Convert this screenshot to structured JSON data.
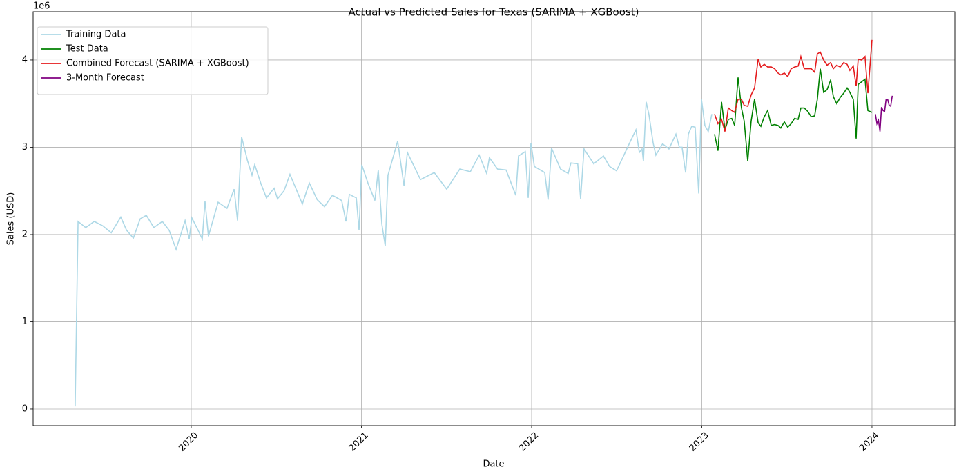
{
  "chart_data": {
    "type": "line",
    "title": "Actual vs Predicted Sales for Texas (SARIMA + XGBoost)",
    "x_label": "Date",
    "y_label": "Sales (USD)",
    "y_offset_label": "1e6",
    "xlim": [
      2019.071,
      2024.487
    ],
    "xticks": [
      2020,
      2021,
      2022,
      2023,
      2024
    ],
    "ylim": [
      -0.19,
      4.553
    ],
    "yticks": [
      0,
      1,
      2,
      3,
      4
    ],
    "grid": true,
    "legend": "upper left",
    "series": [
      {
        "name": "Training Data",
        "color": "#add8e6",
        "x": [
          2019.318,
          2019.335,
          2019.38,
          2019.43,
          2019.48,
          2019.53,
          2019.586,
          2019.62,
          2019.66,
          2019.7,
          2019.736,
          2019.78,
          2019.83,
          2019.87,
          2019.911,
          2019.964,
          2019.988,
          2020.004,
          2020.04,
          2020.065,
          2020.081,
          2020.101,
          2020.158,
          2020.21,
          2020.252,
          2020.272,
          2020.296,
          2020.33,
          2020.357,
          2020.373,
          2020.41,
          2020.442,
          2020.487,
          2020.507,
          2020.545,
          2020.58,
          2020.653,
          2020.694,
          2020.74,
          2020.783,
          2020.83,
          2020.884,
          2020.909,
          2020.929,
          2020.97,
          2020.986,
          2021.002,
          2021.04,
          2021.079,
          2021.099,
          2021.12,
          2021.14,
          2021.156,
          2021.213,
          2021.25,
          2021.27,
          2021.347,
          2021.428,
          2021.501,
          2021.578,
          2021.64,
          2021.692,
          2021.736,
          2021.752,
          2021.8,
          2021.85,
          2021.907,
          2021.923,
          2021.963,
          2021.98,
          2021.996,
          2022.016,
          2022.077,
          2022.097,
          2022.117,
          2022.17,
          2022.215,
          2022.231,
          2022.271,
          2022.288,
          2022.308,
          2022.365,
          2022.422,
          2022.458,
          2022.499,
          2022.54,
          2022.576,
          2022.613,
          2022.633,
          2022.649,
          2022.657,
          2022.673,
          2022.689,
          2022.714,
          2022.73,
          2022.77,
          2022.807,
          2022.848,
          2022.868,
          2022.884,
          2022.905,
          2022.921,
          2022.941,
          2022.961,
          2022.982,
          2022.998,
          2023.018,
          2023.038,
          2023.059
        ],
        "values": [
          0.03,
          2.15,
          2.08,
          2.15,
          2.1,
          2.02,
          2.2,
          2.05,
          1.96,
          2.18,
          2.22,
          2.08,
          2.15,
          2.05,
          1.83,
          2.16,
          1.95,
          2.19,
          2.05,
          1.95,
          2.38,
          1.98,
          2.37,
          2.3,
          2.52,
          2.16,
          3.12,
          2.85,
          2.68,
          2.8,
          2.58,
          2.42,
          2.53,
          2.41,
          2.5,
          2.69,
          2.35,
          2.59,
          2.4,
          2.32,
          2.45,
          2.39,
          2.15,
          2.46,
          2.42,
          2.05,
          2.8,
          2.58,
          2.39,
          2.74,
          2.12,
          1.87,
          2.68,
          3.07,
          2.56,
          2.94,
          2.63,
          2.71,
          2.52,
          2.75,
          2.72,
          2.91,
          2.7,
          2.88,
          2.75,
          2.74,
          2.45,
          2.9,
          2.95,
          2.42,
          3.05,
          2.78,
          2.71,
          2.4,
          2.99,
          2.75,
          2.7,
          2.82,
          2.81,
          2.41,
          2.98,
          2.81,
          2.9,
          2.78,
          2.73,
          2.9,
          3.05,
          3.2,
          2.94,
          2.98,
          2.84,
          3.52,
          3.38,
          3.05,
          2.91,
          3.04,
          2.98,
          3.15,
          3.0,
          3.0,
          2.71,
          3.15,
          3.24,
          3.23,
          2.47,
          3.55,
          3.25,
          3.18,
          3.38
        ]
      },
      {
        "name": "Test Data",
        "color": "#008000",
        "x": [
          2023.075,
          2023.095,
          2023.116,
          2023.136,
          2023.156,
          2023.176,
          2023.193,
          2023.213,
          2023.233,
          2023.249,
          2023.27,
          2023.29,
          2023.31,
          2023.331,
          2023.347,
          2023.367,
          2023.387,
          2023.408,
          2023.428,
          2023.448,
          2023.464,
          2023.485,
          2023.505,
          2023.525,
          2023.545,
          2023.566,
          2023.582,
          2023.602,
          2023.623,
          2023.643,
          2023.663,
          2023.679,
          2023.696,
          2023.716,
          2023.736,
          2023.757,
          2023.773,
          2023.793,
          2023.813,
          2023.834,
          2023.854,
          2023.87,
          2023.89,
          2023.907,
          2023.919,
          2023.939,
          2023.959,
          2023.976,
          2024.0
        ],
        "values": [
          3.15,
          2.96,
          3.52,
          3.2,
          3.32,
          3.33,
          3.25,
          3.8,
          3.45,
          3.3,
          2.84,
          3.3,
          3.55,
          3.28,
          3.24,
          3.35,
          3.42,
          3.25,
          3.26,
          3.25,
          3.22,
          3.29,
          3.23,
          3.27,
          3.33,
          3.32,
          3.45,
          3.45,
          3.41,
          3.35,
          3.36,
          3.55,
          3.9,
          3.63,
          3.66,
          3.77,
          3.58,
          3.5,
          3.57,
          3.62,
          3.68,
          3.63,
          3.55,
          3.1,
          3.72,
          3.75,
          3.78,
          3.42,
          3.4
        ]
      },
      {
        "name": "Combined Forecast (SARIMA + XGBoost)",
        "color": "#e41a1c",
        "x": [
          2023.075,
          2023.095,
          2023.116,
          2023.136,
          2023.156,
          2023.176,
          2023.193,
          2023.213,
          2023.233,
          2023.249,
          2023.27,
          2023.29,
          2023.31,
          2023.331,
          2023.347,
          2023.367,
          2023.387,
          2023.408,
          2023.428,
          2023.448,
          2023.464,
          2023.485,
          2023.505,
          2023.525,
          2023.545,
          2023.566,
          2023.582,
          2023.602,
          2023.623,
          2023.643,
          2023.663,
          2023.679,
          2023.696,
          2023.716,
          2023.736,
          2023.757,
          2023.773,
          2023.793,
          2023.813,
          2023.834,
          2023.854,
          2023.87,
          2023.89,
          2023.907,
          2023.919,
          2023.939,
          2023.959,
          2023.976,
          2024.0
        ],
        "values": [
          3.38,
          3.27,
          3.32,
          3.18,
          3.45,
          3.42,
          3.4,
          3.55,
          3.55,
          3.48,
          3.47,
          3.6,
          3.68,
          4.01,
          3.92,
          3.95,
          3.92,
          3.92,
          3.9,
          3.85,
          3.83,
          3.85,
          3.81,
          3.9,
          3.92,
          3.93,
          4.04,
          3.9,
          3.9,
          3.9,
          3.86,
          4.07,
          4.09,
          4.0,
          3.94,
          3.97,
          3.9,
          3.94,
          3.92,
          3.97,
          3.95,
          3.88,
          3.93,
          3.7,
          4.01,
          4.0,
          4.04,
          3.62,
          4.23
        ]
      },
      {
        "name": "3-Month Forecast",
        "color": "#800080",
        "x": [
          2024.02,
          2024.029,
          2024.038,
          2024.047,
          2024.056,
          2024.065,
          2024.074,
          2024.083,
          2024.092,
          2024.101,
          2024.11,
          2024.119
        ],
        "values": [
          3.38,
          3.27,
          3.31,
          3.18,
          3.46,
          3.42,
          3.41,
          3.55,
          3.55,
          3.48,
          3.47,
          3.59
        ]
      }
    ]
  }
}
